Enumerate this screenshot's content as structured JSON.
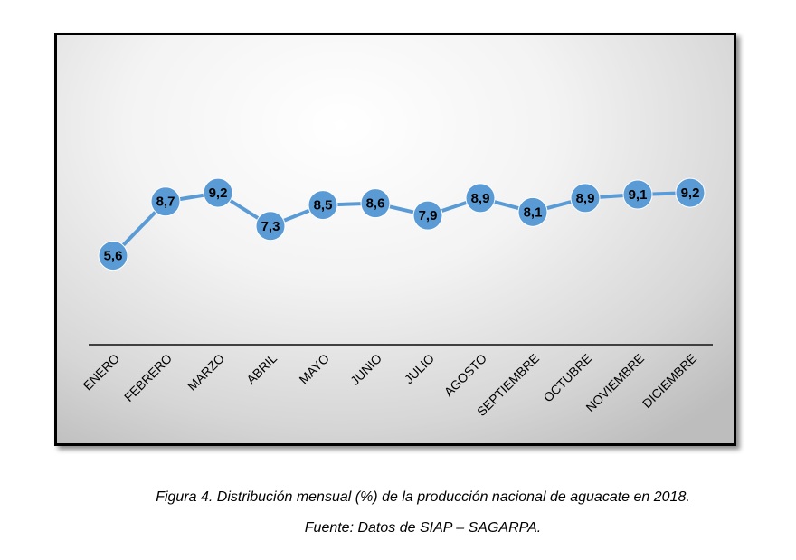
{
  "chart_data": {
    "type": "line",
    "categories": [
      "ENERO",
      "FEBRERO",
      "MARZO",
      "ABRIL",
      "MAYO",
      "JUNIO",
      "JULIO",
      "AGOSTO",
      "SEPTIEMBRE",
      "OCTUBRE",
      "NOVIEMBRE",
      "DICIEMBRE"
    ],
    "values": [
      5.6,
      8.7,
      9.2,
      7.3,
      8.5,
      8.6,
      7.9,
      8.9,
      8.1,
      8.9,
      9.1,
      9.2
    ],
    "data_labels": [
      "5,6",
      "8,7",
      "9,2",
      "7,3",
      "8,5",
      "8,6",
      "7,9",
      "8,9",
      "8,1",
      "8,9",
      "9,1",
      "9,2"
    ],
    "title": "",
    "xlabel": "",
    "ylabel": "",
    "grid": false,
    "legend": "none",
    "colors": {
      "line": "#5b9bd5",
      "marker": "#5b9bd5",
      "axis": "#404040",
      "label_text": "#000000"
    }
  },
  "caption": {
    "title": "Figura 4. Distribución mensual (%) de la producción nacional de aguacate en 2018.",
    "source": "Fuente: Datos de SIAP – SAGARPA."
  }
}
